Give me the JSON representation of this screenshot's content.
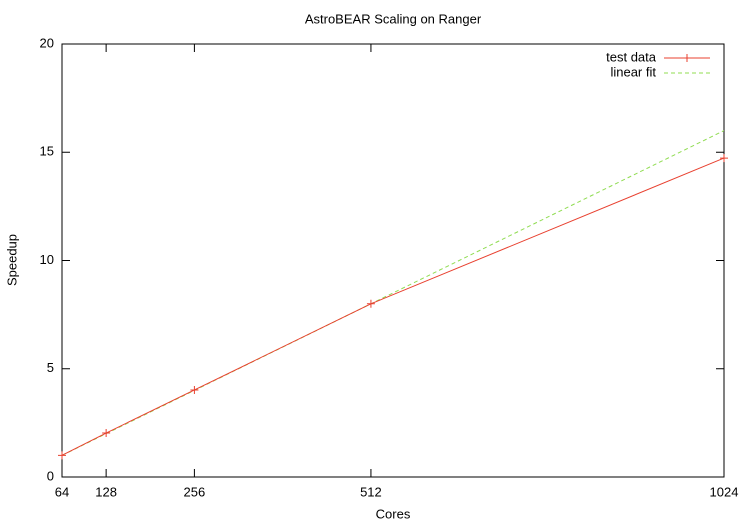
{
  "chart_data": {
    "type": "line",
    "title": "AstroBEAR Scaling on Ranger",
    "x_label": "Cores",
    "y_label": "Speedup",
    "x": [
      64,
      128,
      256,
      512,
      1024
    ],
    "series": [
      {
        "name": "test data",
        "color": "#e8402f",
        "dash": false,
        "marker": "+",
        "values": [
          1,
          2.03,
          4.02,
          8.0,
          14.73
        ]
      },
      {
        "name": "linear fit",
        "color": "#90dc52",
        "dash": true,
        "marker": null,
        "values": [
          1,
          2,
          4,
          8,
          16
        ]
      }
    ],
    "xlim": [
      64,
      1024
    ],
    "xticks": [
      64,
      128,
      256,
      512,
      1024
    ],
    "ylim": [
      0,
      20
    ],
    "yticks": [
      0,
      5,
      10,
      15,
      20
    ],
    "grid": false,
    "legend": "top-right"
  }
}
